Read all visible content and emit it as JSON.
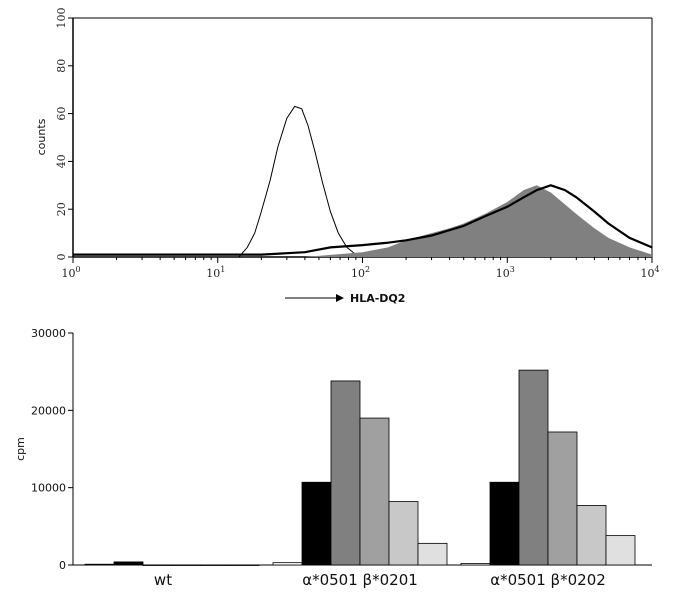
{
  "chart_data": [
    {
      "type": "histogram",
      "ylabel": "counts",
      "xlabel": "HLA-DQ2",
      "x_scale": "log",
      "xlim": [
        1,
        10000
      ],
      "ylim": [
        0,
        100
      ],
      "y_ticks": [
        "0",
        "20",
        "40",
        "60",
        "80",
        "100"
      ],
      "x_ticks": [
        {
          "base": "10",
          "exp": "0"
        },
        {
          "base": "10",
          "exp": "1"
        },
        {
          "base": "10",
          "exp": "2"
        },
        {
          "base": "10",
          "exp": "3"
        },
        {
          "base": "10",
          "exp": "4"
        }
      ],
      "series": [
        {
          "style": "thin-line",
          "color": "#000000",
          "points": [
            [
              14,
              0
            ],
            [
              16,
              4
            ],
            [
              18,
              10
            ],
            [
              20,
              19
            ],
            [
              23,
              32
            ],
            [
              26,
              46
            ],
            [
              30,
              58
            ],
            [
              34,
              63
            ],
            [
              38,
              62
            ],
            [
              42,
              55
            ],
            [
              47,
              44
            ],
            [
              53,
              31
            ],
            [
              60,
              19
            ],
            [
              68,
              10
            ],
            [
              78,
              4
            ],
            [
              90,
              1
            ],
            [
              100,
              0
            ]
          ]
        },
        {
          "style": "filled",
          "color": "#808080",
          "points": [
            [
              40,
              0
            ],
            [
              100,
              2
            ],
            [
              150,
              4
            ],
            [
              200,
              7
            ],
            [
              300,
              10
            ],
            [
              400,
              12
            ],
            [
              500,
              14
            ],
            [
              700,
              18
            ],
            [
              1000,
              23
            ],
            [
              1300,
              28
            ],
            [
              1600,
              30
            ],
            [
              2000,
              27
            ],
            [
              2500,
              22
            ],
            [
              3000,
              18
            ],
            [
              4000,
              12
            ],
            [
              5000,
              8
            ],
            [
              7000,
              4
            ],
            [
              10000,
              1
            ]
          ]
        },
        {
          "style": "thick-line",
          "color": "#000000",
          "points": [
            [
              1,
              1
            ],
            [
              20,
              1
            ],
            [
              40,
              2
            ],
            [
              60,
              4
            ],
            [
              100,
              5
            ],
            [
              150,
              6
            ],
            [
              200,
              7
            ],
            [
              300,
              9
            ],
            [
              500,
              13
            ],
            [
              700,
              17
            ],
            [
              1000,
              21
            ],
            [
              1300,
              25
            ],
            [
              1600,
              28
            ],
            [
              2000,
              30
            ],
            [
              2500,
              28
            ],
            [
              3000,
              25
            ],
            [
              4000,
              19
            ],
            [
              5000,
              14
            ],
            [
              7000,
              8
            ],
            [
              10000,
              4
            ]
          ]
        }
      ]
    },
    {
      "type": "bar",
      "ylabel": "cpm",
      "ylim": [
        0,
        30000
      ],
      "y_ticks": [
        "0",
        "10000",
        "20000",
        "30000"
      ],
      "categories": [
        "wt",
        "α*0501 β*0201",
        "α*0501 β*0202"
      ],
      "bar_colors": [
        "#ffffff",
        "#000000",
        "#808080",
        "#a0a0a0",
        "#c8c8c8",
        "#e0e0e0"
      ],
      "groups": [
        [
          100,
          400,
          0,
          0,
          0,
          0
        ],
        [
          300,
          10700,
          23800,
          19000,
          8200,
          2800
        ],
        [
          200,
          10700,
          25200,
          17200,
          7700,
          3800
        ]
      ]
    }
  ]
}
